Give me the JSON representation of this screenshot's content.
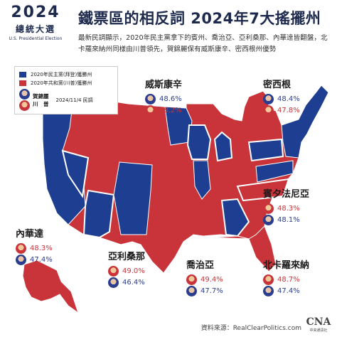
{
  "header": {
    "logo_year": "2024",
    "logo_cn": "總統大選",
    "logo_en": "U.S. Presidential Election",
    "title": "鐵票區的相反詞  2024年7大搖擺州",
    "subtitle": "最新民調顯示，2020年民主黨拿下的賓州、喬治亞、亞利桑那、內華達皆翻盤，北卡羅來納州同樣由川普領先，賀錦麗保有威斯康辛、密西根州優勢"
  },
  "legend": {
    "dem_label": "2020年民主黨(拜登)獲勝州",
    "rep_label": "2020年共和黨(川普)獲勝州",
    "harris": "賀錦麗",
    "trump": "川　普",
    "poll_label": "2024/11/4 民調"
  },
  "colors": {
    "dem": "#1e3f91",
    "rep": "#c8343a",
    "swing_border": "#ffffff"
  },
  "icons": {
    "harris": "harris-avatar-icon",
    "trump": "trump-avatar-icon"
  },
  "states": [
    {
      "name": "威斯康辛",
      "harris": "48.6%",
      "trump": "48.2%"
    },
    {
      "name": "密西根",
      "harris": "48.4%",
      "trump": "47.8%"
    },
    {
      "name": "賓夕法尼亞",
      "trump": "48.3%",
      "harris": "48.1%"
    },
    {
      "name": "內華達",
      "trump": "48.3%",
      "harris": "47.4%"
    },
    {
      "name": "亞利桑那",
      "trump": "49.0%",
      "harris": "46.4%"
    },
    {
      "name": "喬治亞",
      "trump": "49.4%",
      "harris": "47.7%"
    },
    {
      "name": "北卡羅來納",
      "trump": "48.7%",
      "harris": "47.4%"
    }
  ],
  "footer": {
    "source": "資料來源：RealClearPolitics.com",
    "cna": "CNA",
    "cna_sub": "中央通訊社"
  }
}
